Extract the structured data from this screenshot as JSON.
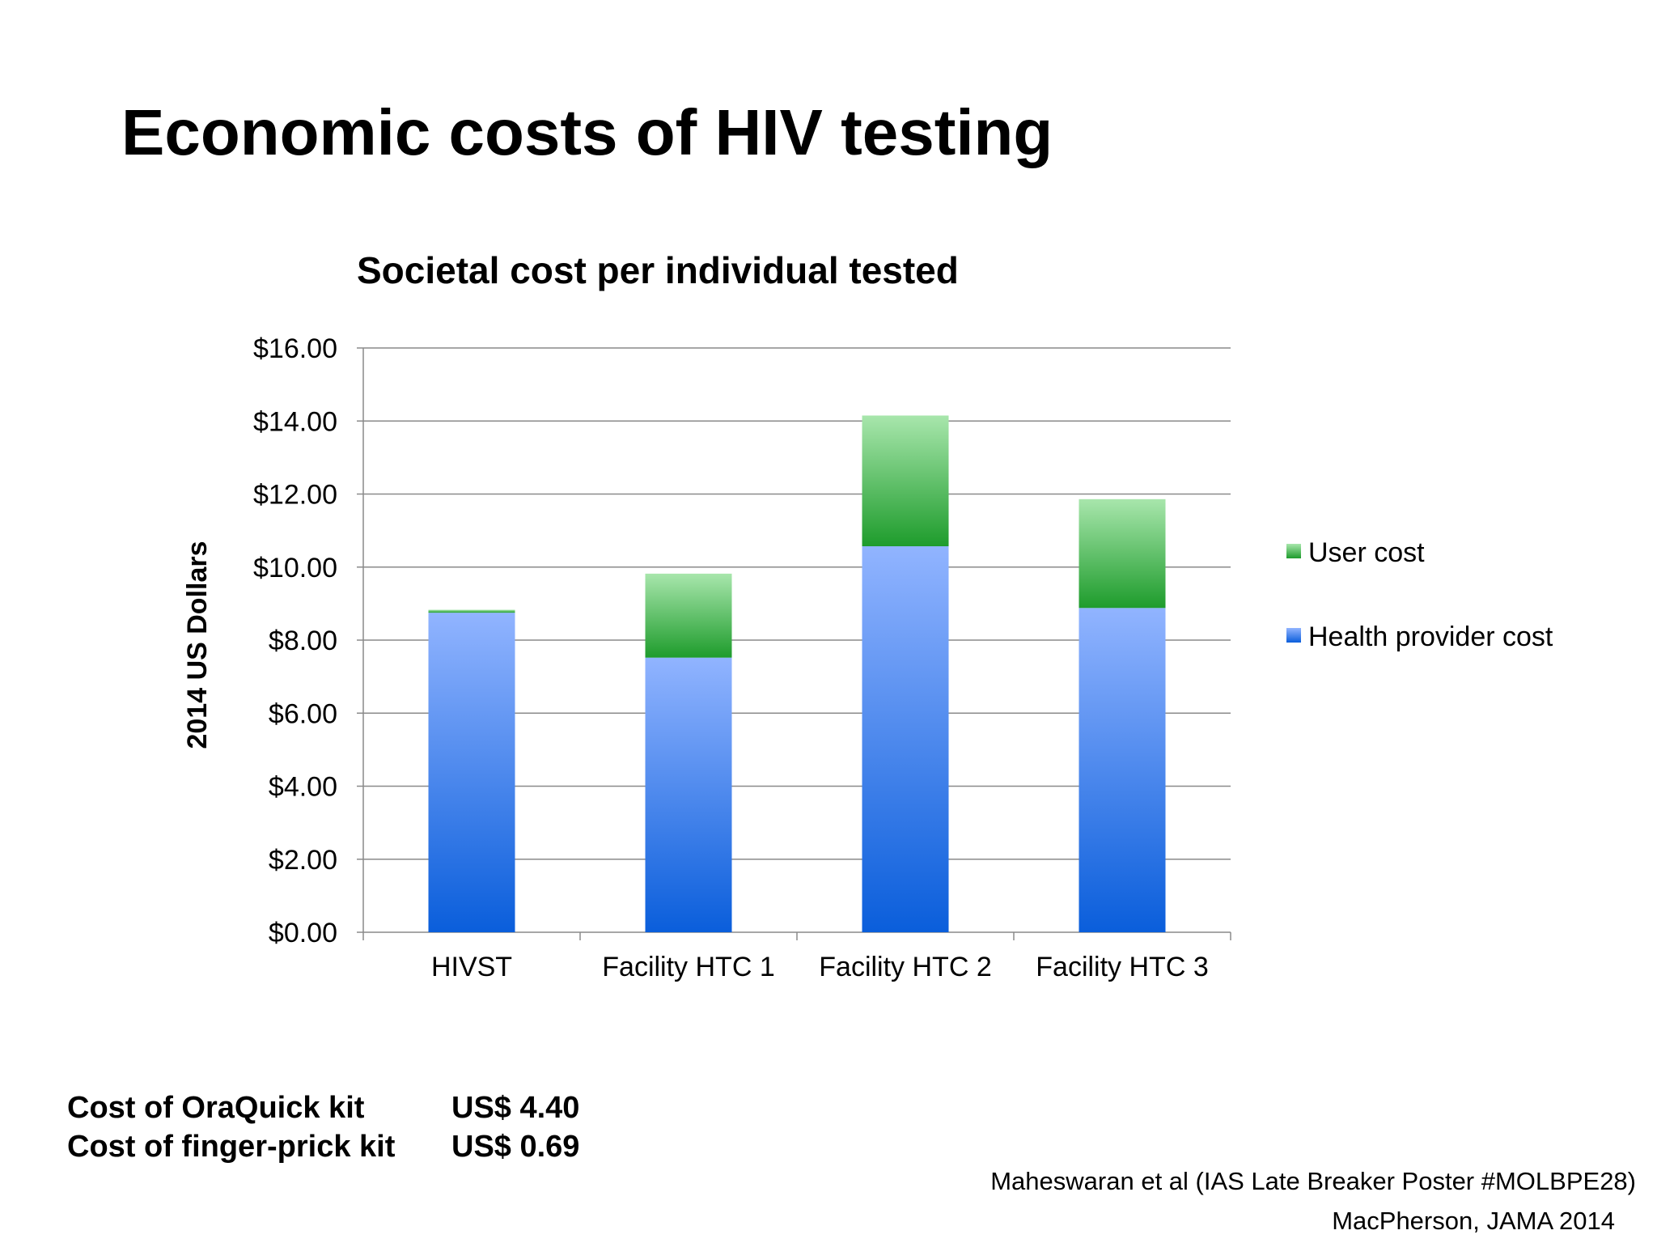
{
  "slide": {
    "title": "Economic costs of HIV testing"
  },
  "chart_data": {
    "type": "bar",
    "stacked": true,
    "title": "Societal cost per individual tested",
    "xlabel": "",
    "ylabel": "2014 US Dollars",
    "categories": [
      "HIVST",
      "Facility HTC 1",
      "Facility HTC 2",
      "Facility HTC 3"
    ],
    "series": [
      {
        "name": "Health provider cost",
        "values": [
          8.75,
          7.52,
          10.57,
          8.88
        ],
        "color_light": "#91b4ff",
        "color_dark": "#0a5edb"
      },
      {
        "name": "User cost",
        "values": [
          0.08,
          2.3,
          3.58,
          2.98
        ],
        "color_light": "#a8e6ac",
        "color_dark": "#1e9c2c"
      }
    ],
    "ylim": [
      0,
      16
    ],
    "yticks": [
      0,
      2,
      4,
      6,
      8,
      10,
      12,
      14,
      16
    ],
    "ytick_labels": [
      "$0.00",
      "$2.00",
      "$4.00",
      "$6.00",
      "$8.00",
      "$10.00",
      "$12.00",
      "$14.00",
      "$16.00"
    ],
    "grid": true,
    "legend_position": "right",
    "legend": [
      "User cost",
      "Health provider cost"
    ]
  },
  "kit_costs": [
    {
      "label": "Cost of OraQuick kit",
      "value": "US$ 4.40"
    },
    {
      "label": "Cost of finger-prick kit",
      "value": "US$ 0.69"
    }
  ],
  "credits": [
    "Maheswaran et al (IAS Late Breaker Poster #MOLBPE28)",
    "MacPherson, JAMA 2014"
  ]
}
